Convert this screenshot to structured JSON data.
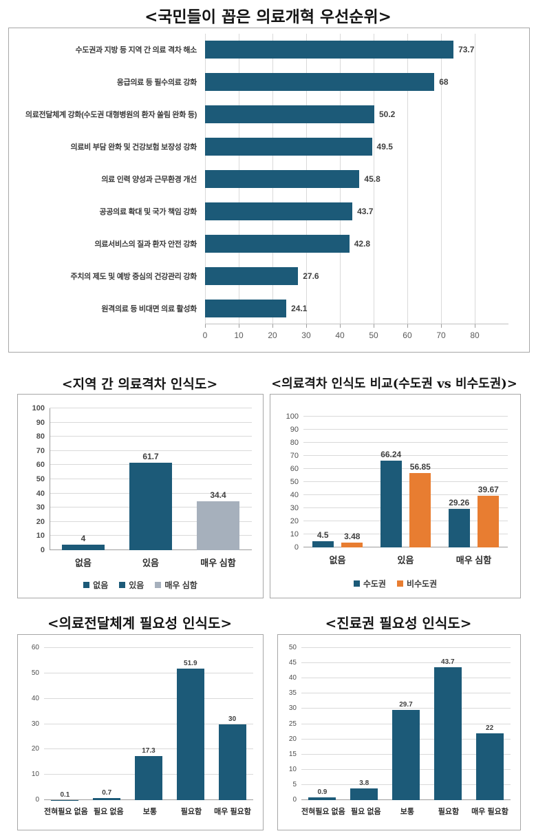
{
  "colors": {
    "teal": "#1c5a78",
    "orange": "#e87d31",
    "gray": "#a6b0bc",
    "gridline": "#d9d9d9",
    "axis_text": "#595959",
    "value_text": "#404040",
    "box_border": "#a6a6a6"
  },
  "chart_data": [
    {
      "type": "bar",
      "orientation": "horizontal",
      "title": "<국민들이 꼽은 의료개혁 우선순위>",
      "categories": [
        "수도권과 지방 등 지역 간 의료 격차 해소",
        "응급의료 등 필수의료 강화",
        "의료전달체계 강화(수도권 대형병원의 환자 쏠림 완화 등)",
        "의료비 부담 완화 및 건강보험 보장성 강화",
        "의료 인력 양성과 근무환경 개선",
        "공공의료 확대 및 국가 책임 강화",
        "의료서비스의 질과 환자 안전 강화",
        "주치의 제도 및 예방 중심의 건강관리 강화",
        "원격의료 등 비대면 의료 활성화"
      ],
      "values": [
        73.7,
        68,
        50.2,
        49.5,
        45.8,
        43.7,
        42.8,
        27.6,
        24.1
      ],
      "bar_color": "#1c5a78",
      "xticks": [
        0,
        10,
        20,
        30,
        40,
        50,
        60,
        70,
        80
      ],
      "xlim": [
        0,
        90
      ],
      "grid": true
    },
    {
      "type": "bar",
      "orientation": "vertical",
      "title": "<지역 간 의료격차 인식도>",
      "categories": [
        "없음",
        "있음",
        "매우 심함"
      ],
      "values": [
        4,
        61.7,
        34.4
      ],
      "bar_colors": [
        "#1c5a78",
        "#1c5a78",
        "#a6b0bc"
      ],
      "yticks": [
        0,
        10,
        20,
        30,
        40,
        50,
        60,
        70,
        80,
        90,
        100
      ],
      "ylim": [
        0,
        100
      ],
      "grid": true,
      "legend_position": "bottom",
      "legend": [
        {
          "label": "없음",
          "color": "#1c5a78"
        },
        {
          "label": "있음",
          "color": "#1c5a78"
        },
        {
          "label": "매우 심함",
          "color": "#a6b0bc"
        }
      ]
    },
    {
      "type": "bar",
      "orientation": "vertical",
      "title": "<의료격차 인식도 비교(수도권 vs 비수도권)>",
      "categories": [
        "없음",
        "있음",
        "매우 심함"
      ],
      "series": [
        {
          "name": "수도권",
          "color": "#1c5a78",
          "values": [
            4.5,
            66.24,
            29.26
          ]
        },
        {
          "name": "비수도권",
          "color": "#e87d31",
          "values": [
            3.48,
            56.85,
            39.67
          ]
        }
      ],
      "yticks": [
        0,
        10,
        20,
        30,
        40,
        50,
        60,
        70,
        80,
        90,
        100
      ],
      "ylim": [
        0,
        100
      ],
      "grid": true,
      "legend_position": "bottom"
    },
    {
      "type": "bar",
      "orientation": "vertical",
      "title": "<의료전달체계 필요성 인식도>",
      "categories": [
        "전혀필요 없음",
        "필요 없음",
        "보통",
        "필요함",
        "매우 필요함"
      ],
      "values": [
        0.1,
        0.7,
        17.3,
        51.9,
        30
      ],
      "bar_color": "#1c5a78",
      "yticks": [
        0,
        10,
        20,
        30,
        40,
        50,
        60
      ],
      "ylim": [
        0,
        60
      ],
      "grid": true
    },
    {
      "type": "bar",
      "orientation": "vertical",
      "title": "<진료권 필요성 인식도>",
      "categories": [
        "전혀필요 없음",
        "필요 없음",
        "보통",
        "필요함",
        "매우 필요함"
      ],
      "values": [
        0.9,
        3.8,
        29.7,
        43.7,
        22
      ],
      "bar_color": "#1c5a78",
      "yticks": [
        0,
        5,
        10,
        15,
        20,
        25,
        30,
        35,
        40,
        45,
        50
      ],
      "ylim": [
        0,
        50
      ],
      "grid": true
    }
  ]
}
